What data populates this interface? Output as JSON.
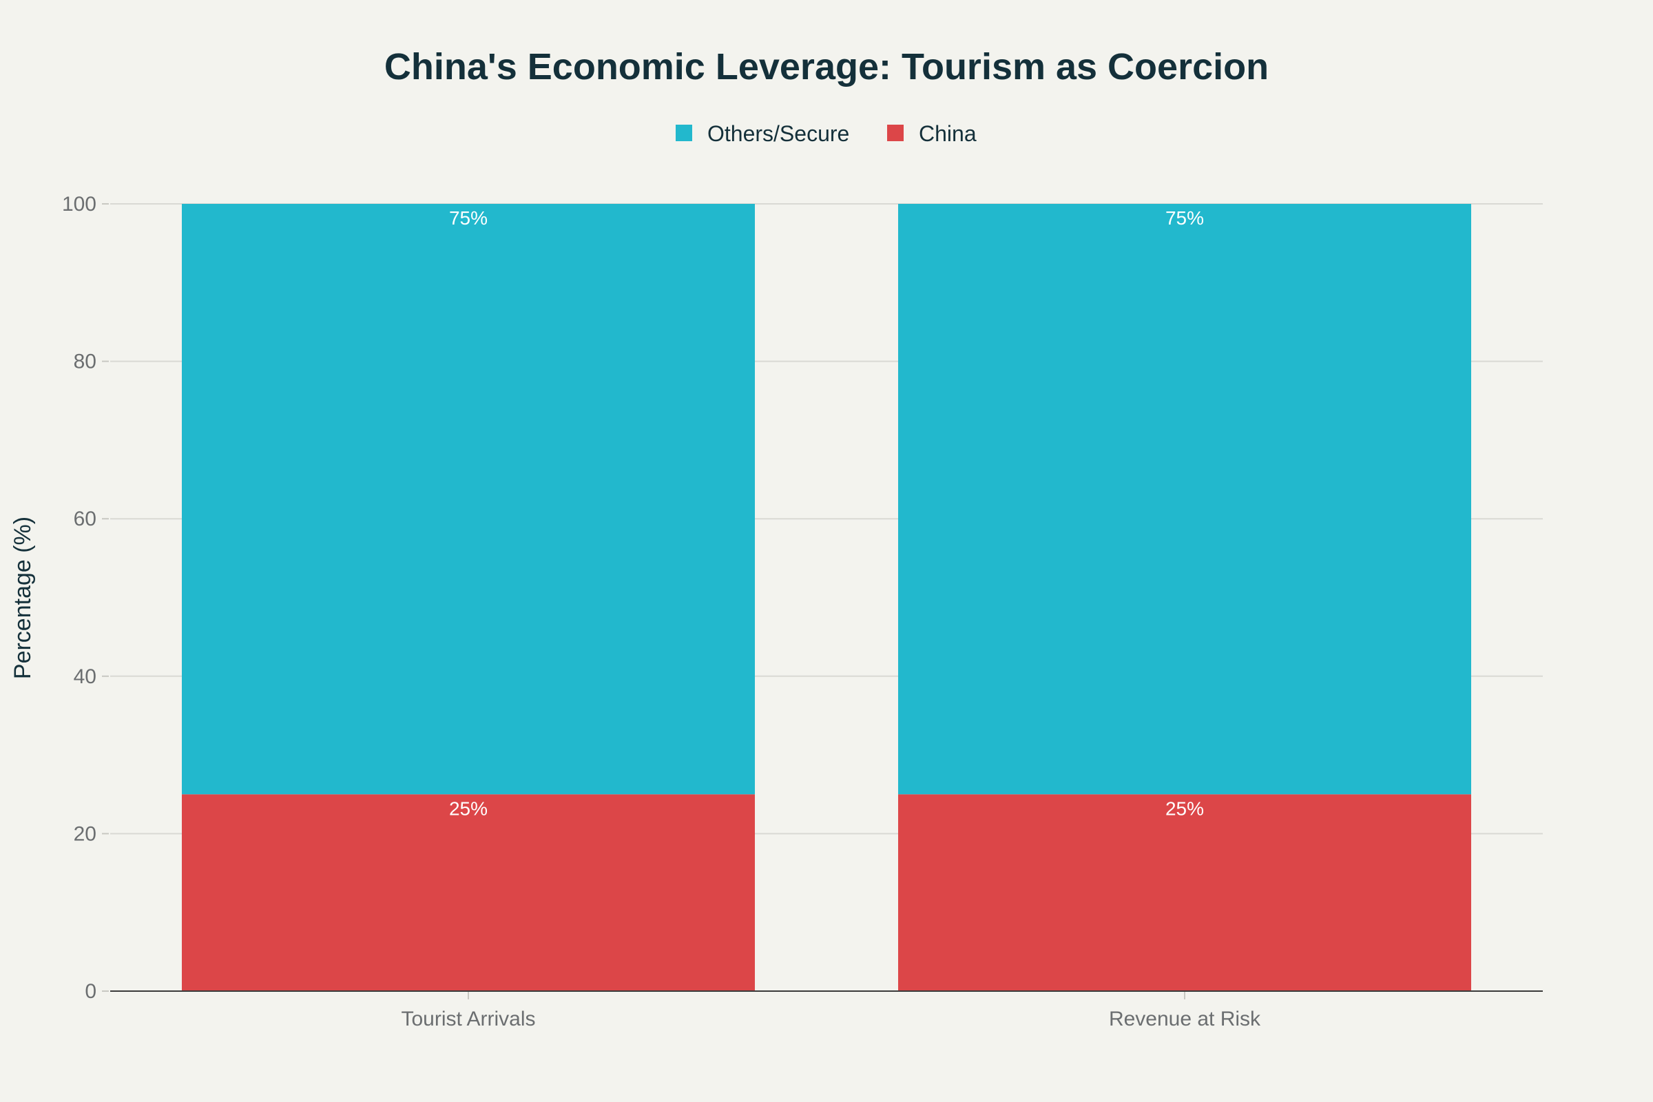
{
  "chart_data": {
    "type": "bar",
    "stacked": true,
    "title": "China's Economic Leverage: Tourism as Coercion",
    "xlabel": "",
    "ylabel": "Percentage (%)",
    "categories": [
      "Tourist Arrivals",
      "Revenue at Risk"
    ],
    "series": [
      {
        "name": "China",
        "values": [
          25,
          25
        ],
        "color": "#dc4648",
        "labels": [
          "25%",
          "25%"
        ]
      },
      {
        "name": "Others/Secure",
        "values": [
          75,
          75
        ],
        "color": "#22b8cd",
        "labels": [
          "75%",
          "75%"
        ]
      }
    ],
    "legend_order": [
      "Others/Secure",
      "China"
    ],
    "legend_placement": "top-center",
    "ylim": [
      0,
      100
    ],
    "yticks": [
      0,
      20,
      40,
      60,
      80,
      100
    ],
    "grid": true
  }
}
